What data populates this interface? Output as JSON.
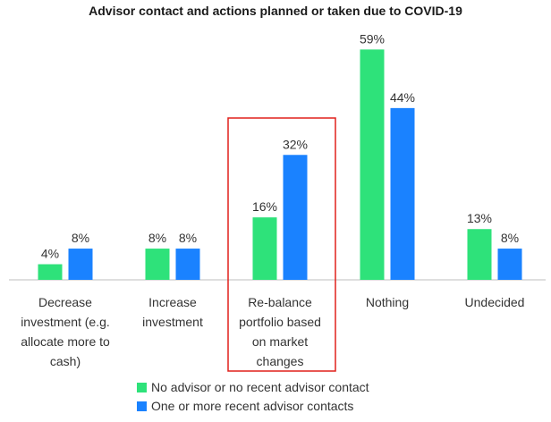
{
  "chart_data": {
    "type": "bar",
    "title": "Advisor contact and actions planned or taken due to COVID-19",
    "categories": [
      [
        "Decrease",
        "investment (e.g.",
        "allocate more to",
        "cash)"
      ],
      [
        "Increase",
        "investment"
      ],
      [
        "Re-balance",
        "portfolio based",
        "on market",
        "changes"
      ],
      [
        "Nothing"
      ],
      [
        "Undecided"
      ]
    ],
    "series": [
      {
        "name": "No advisor or no recent advisor contact",
        "color": "#2ee27a",
        "values": [
          4,
          8,
          16,
          59,
          13
        ],
        "labels": [
          "4%",
          "8%",
          "16%",
          "59%",
          "13%"
        ]
      },
      {
        "name": "One or more recent advisor contacts",
        "color": "#1a82ff",
        "values": [
          8,
          8,
          32,
          44,
          8
        ],
        "labels": [
          "8%",
          "8%",
          "32%",
          "44%",
          "8%"
        ]
      }
    ],
    "highlight": {
      "category_index": 2,
      "color": "#e0201b"
    },
    "ylim": [
      0,
      60
    ],
    "grid": false,
    "legend": "bottom-center"
  }
}
